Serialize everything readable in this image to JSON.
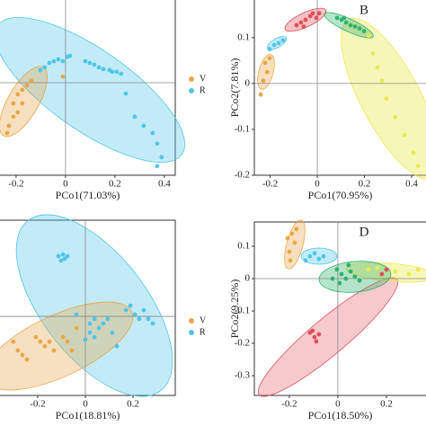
{
  "chart_data": [
    {
      "type": "scatter",
      "xlabel": "PCo1(71.03%)",
      "xlim": [
        -0.265,
        0.444
      ],
      "xticks": [
        -0.2,
        0,
        0.2,
        0.4
      ],
      "ylim": [
        -0.375,
        0.335
      ],
      "legend": "right",
      "series": [
        {
          "name": "V",
          "color": "#e9a648",
          "x": [
            -0.011,
            -0.138,
            -0.156,
            -0.175,
            -0.193,
            -0.211,
            -0.175,
            -0.193,
            -0.211,
            -0.229,
            -0.236
          ],
          "values": [
            0.025,
            0.007,
            -0.011,
            -0.029,
            -0.047,
            -0.084,
            -0.084,
            -0.12,
            -0.138,
            -0.175,
            -0.204
          ]
        },
        {
          "name": "R",
          "color": "#4fc6e8",
          "x": [
            -0.084,
            -0.065,
            -0.047,
            -0.029,
            -0.011,
            0.007,
            0.018,
            0.08,
            0.098,
            0.116,
            0.135,
            0.153,
            0.178,
            0.189,
            0.207,
            0.225,
            0.244,
            0.28,
            0.316,
            0.353,
            0.371,
            0.389,
            0.371,
            -0.102
          ],
          "values": [
            0.062,
            0.08,
            0.087,
            0.095,
            0.087,
            0.105,
            0.109,
            0.087,
            0.08,
            0.073,
            0.062,
            0.055,
            0.051,
            0.044,
            0.044,
            0.036,
            -0.044,
            -0.138,
            -0.175,
            -0.204,
            -0.247,
            -0.302,
            -0.338,
            0.051
          ]
        }
      ]
    },
    {
      "type": "scatter",
      "panel_label": "B",
      "xlabel": "PCo1(70.95%)",
      "ylabel": "PCo2(7.81%)",
      "xlim": [
        -0.267,
        0.461
      ],
      "xticks": [
        -0.2,
        0,
        0.2,
        0.4
      ],
      "ylim": [
        -0.2,
        0.182
      ],
      "yticks": [
        -0.2,
        -0.1,
        0,
        0.1
      ],
      "series": [
        {
          "color": "#e0505a",
          "x": [
            -0.088,
            -0.069,
            -0.05,
            -0.03,
            -0.019,
            -0.004,
            -0.057,
            0.008
          ],
          "values": [
            0.127,
            0.133,
            0.139,
            0.147,
            0.153,
            0.143,
            0.124,
            0.153
          ]
        },
        {
          "color": "#4fc6e8",
          "x": [
            -0.183,
            -0.164,
            -0.145,
            -0.202
          ],
          "values": [
            0.084,
            0.088,
            0.094,
            0.075
          ]
        },
        {
          "color": "#2fb36a",
          "x": [
            0.084,
            0.103,
            0.122,
            0.141,
            0.16,
            0.179,
            0.198,
            0.114
          ],
          "values": [
            0.143,
            0.139,
            0.133,
            0.127,
            0.124,
            0.12,
            0.114,
            0.143
          ]
        },
        {
          "color": "#e9a648",
          "x": [
            -0.221,
            -0.213,
            -0.229,
            -0.24,
            -0.202
          ],
          "values": [
            0.045,
            0.025,
            0.006,
            -0.024,
            0.055
          ]
        },
        {
          "color": "#ece84f",
          "x": [
            0.217,
            0.236,
            0.255,
            0.274,
            0.293,
            0.331,
            0.37,
            0.408,
            0.427
          ],
          "values": [
            0.104,
            0.065,
            0.035,
            0.006,
            -0.033,
            -0.073,
            -0.112,
            -0.151,
            -0.18
          ]
        }
      ]
    },
    {
      "type": "scatter",
      "xlabel": "PCo1(18.81%)",
      "xlim": [
        -0.358,
        0.377
      ],
      "xticks": [
        -0.2,
        0,
        0.2
      ],
      "ylim": [
        -0.332,
        0.404
      ],
      "legend": "right",
      "series": [
        {
          "name": "V",
          "color": "#e9a648",
          "x": [
            -0.302,
            -0.283,
            -0.264,
            -0.245,
            -0.208,
            -0.189,
            -0.17,
            -0.151,
            -0.132,
            -0.094,
            -0.075,
            -0.057,
            -0.038
          ],
          "values": [
            -0.106,
            -0.143,
            -0.162,
            -0.181,
            -0.087,
            -0.106,
            -0.125,
            -0.106,
            -0.143,
            -0.087,
            -0.106,
            -0.143,
            -0.049
          ]
        },
        {
          "name": "R",
          "color": "#4fc6e8",
          "x": [
            -0.113,
            -0.094,
            -0.102,
            -0.087,
            -0.075,
            0.019,
            0.038,
            0.019,
            0.038,
            0.057,
            0.075,
            0.094,
            0.17,
            0.189,
            0.208,
            0.226,
            0.245,
            0.264,
            0.283,
            -0.038,
            0,
            0.113,
            0.132
          ],
          "values": [
            0.253,
            0.26,
            0.234,
            0.242,
            0.253,
            -0.03,
            -0.011,
            -0.068,
            -0.087,
            -0.049,
            -0.03,
            -0.011,
            0.026,
            0.045,
            0.008,
            -0.011,
            0.026,
            -0.011,
            -0.03,
            0.008,
            -0.098,
            -0.068,
            -0.125
          ]
        }
      ]
    },
    {
      "type": "scatter",
      "panel_label": "D",
      "xlabel": "PCo1(18.50%)",
      "ylabel": "PCo2(9.25%)",
      "xlim": [
        -0.344,
        0.363
      ],
      "xticks": [
        -0.2,
        0,
        0.2
      ],
      "ylim": [
        -0.361,
        0.175
      ],
      "yticks": [
        -0.3,
        -0.2,
        -0.1,
        0,
        0.1
      ],
      "series": [
        {
          "color": "#e9a648",
          "x": [
            -0.207,
            -0.189,
            -0.178,
            -0.2,
            -0.17,
            -0.196
          ],
          "values": [
            0.125,
            0.139,
            0.111,
            0.083,
            0.153,
            0.056
          ]
        },
        {
          "color": "#4fc6e8",
          "x": [
            -0.115,
            -0.096,
            -0.078,
            -0.133,
            -0.059
          ],
          "values": [
            0.069,
            0.078,
            0.061,
            0.056,
            0.069
          ]
        },
        {
          "color": "#2fb36a",
          "x": [
            -0.004,
            0.015,
            0.033,
            0.052,
            0.07,
            0.089,
            -0.022,
            0.007,
            0.044
          ],
          "values": [
            0.028,
            0.014,
            0,
            0.022,
            0.006,
            -0.006,
            0,
            -0.014,
            0.042
          ]
        },
        {
          "color": "#ece84f",
          "x": [
            0.126,
            0.163,
            0.237,
            0.293,
            0.33
          ],
          "values": [
            0.028,
            0.033,
            0.022,
            0.014,
            0.028
          ]
        },
        {
          "color": "#e0505a",
          "x": [
            -0.115,
            -0.096,
            -0.078,
            -0.089,
            -0.104,
            0.2,
            0.181
          ],
          "values": [
            -0.167,
            -0.181,
            -0.172,
            -0.194,
            -0.161,
            0.028,
            0.014
          ]
        }
      ]
    }
  ]
}
